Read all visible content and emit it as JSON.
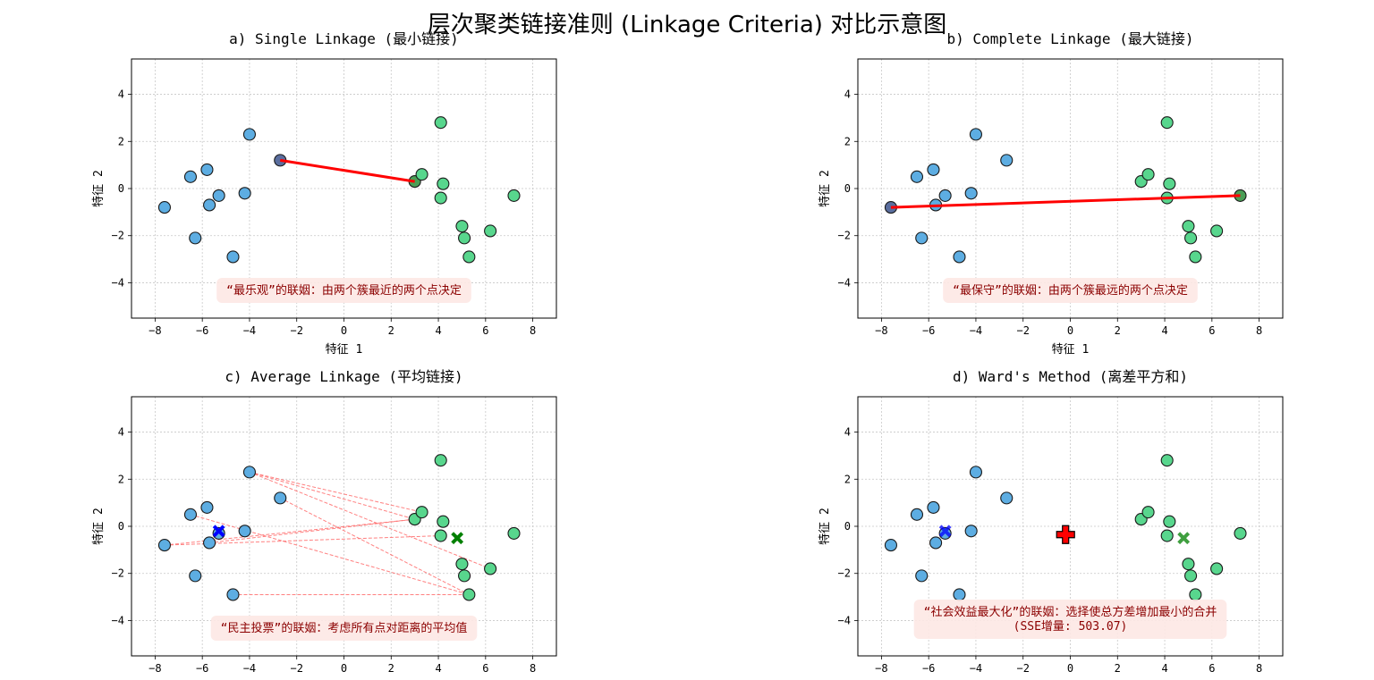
{
  "chart_data": {
    "title": "层次聚类链接准则 (Linkage Criteria) 对比示意图",
    "colors": {
      "cluster_a": "#5dade2",
      "cluster_b": "#58d68d",
      "link": "#ff0000",
      "centroid_a": "#0000ff",
      "centroid_b": "#008000",
      "merged_centroid": "#ff0000",
      "note_bg": "#fde8e4",
      "note_text": "#8b0000"
    },
    "xlim": [
      -9,
      9
    ],
    "ylim": [
      -5.5,
      5.5
    ],
    "xticks": [
      -8,
      -6,
      -4,
      -2,
      0,
      2,
      4,
      6,
      8
    ],
    "yticks": [
      -4,
      -2,
      0,
      2,
      4
    ],
    "cluster_a": [
      {
        "x": -7.6,
        "y": -0.8
      },
      {
        "x": -6.5,
        "y": 0.5
      },
      {
        "x": -5.8,
        "y": 0.8
      },
      {
        "x": -5.7,
        "y": -0.7
      },
      {
        "x": -5.3,
        "y": -0.3
      },
      {
        "x": -6.3,
        "y": -2.1
      },
      {
        "x": -4.7,
        "y": -2.9
      },
      {
        "x": -4.2,
        "y": -0.2
      },
      {
        "x": -4.0,
        "y": 2.3
      },
      {
        "x": -2.7,
        "y": 1.2
      }
    ],
    "cluster_b": [
      {
        "x": 3.0,
        "y": 0.3
      },
      {
        "x": 3.3,
        "y": 0.6
      },
      {
        "x": 4.1,
        "y": 2.8
      },
      {
        "x": 4.2,
        "y": 0.2
      },
      {
        "x": 4.1,
        "y": -0.4
      },
      {
        "x": 5.0,
        "y": -1.6
      },
      {
        "x": 5.1,
        "y": -2.1
      },
      {
        "x": 5.3,
        "y": -2.9
      },
      {
        "x": 6.2,
        "y": -1.8
      },
      {
        "x": 7.2,
        "y": -0.3
      }
    ],
    "panels": [
      {
        "type": "scatter",
        "linkage": "single",
        "title": "a) Single Linkage (最小链接)",
        "xlabel": "特征 1",
        "ylabel": "特征 2",
        "note": [
          "“最乐观”的联姻：由两个簇最近的两个点决定"
        ],
        "link": [
          {
            "x1": -2.7,
            "y1": 1.2,
            "x2": 3.0,
            "y2": 0.3
          }
        ]
      },
      {
        "type": "scatter",
        "linkage": "complete",
        "title": "b) Complete Linkage (最大链接)",
        "xlabel": "特征 1",
        "ylabel": "特征 2",
        "note": [
          "“最保守”的联姻：由两个簇最远的两个点决定"
        ],
        "link": [
          {
            "x1": -7.6,
            "y1": -0.8,
            "x2": 7.2,
            "y2": -0.3
          }
        ]
      },
      {
        "type": "scatter",
        "linkage": "average",
        "title": "c) Average Linkage (平均链接)",
        "xlabel": "",
        "ylabel": "特征 2",
        "note": [
          "“民主投票”的联姻：考虑所有点对距离的平均值"
        ],
        "centroid_a": {
          "x": -5.3,
          "y": -0.2
        },
        "centroid_b": {
          "x": 4.8,
          "y": -0.5
        },
        "pair_lines": [
          {
            "x1": -4.0,
            "y1": 2.3,
            "x2": 3.0,
            "y2": 0.3
          },
          {
            "x1": -4.0,
            "y1": 2.3,
            "x2": 3.3,
            "y2": 0.6
          },
          {
            "x1": -4.0,
            "y1": 2.3,
            "x2": 6.2,
            "y2": -1.8
          },
          {
            "x1": -2.7,
            "y1": 1.2,
            "x2": 5.3,
            "y2": -2.9
          },
          {
            "x1": -7.6,
            "y1": -0.8,
            "x2": 3.0,
            "y2": 0.3
          },
          {
            "x1": -7.6,
            "y1": -0.8,
            "x2": 4.1,
            "y2": -0.4
          },
          {
            "x1": -5.7,
            "y1": -0.7,
            "x2": 3.0,
            "y2": 0.3
          },
          {
            "x1": -6.5,
            "y1": 0.5,
            "x2": 5.3,
            "y2": -2.9
          },
          {
            "x1": -4.7,
            "y1": -2.9,
            "x2": 5.3,
            "y2": -2.9
          }
        ]
      },
      {
        "type": "scatter",
        "linkage": "ward",
        "title": "d) Ward's Method (离差平方和)",
        "xlabel": "",
        "ylabel": "特征 2",
        "note": [
          "“社会效益最大化”的联姻：选择使总方差增加最小的合并",
          "(SSE增量: 503.07)"
        ],
        "centroid_a": {
          "x": -5.3,
          "y": -0.2
        },
        "centroid_b": {
          "x": 4.8,
          "y": -0.5
        },
        "merged_centroid": {
          "x": -0.2,
          "y": -0.35
        }
      }
    ]
  }
}
